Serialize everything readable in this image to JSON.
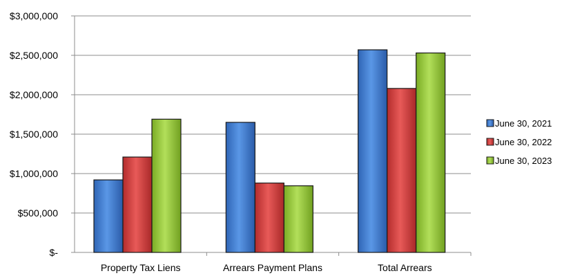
{
  "chart_data": {
    "type": "bar",
    "title": "",
    "xlabel": "",
    "ylabel": "",
    "categories": [
      "Property Tax Liens",
      "Arrears Payment Plans",
      "Total Arrears"
    ],
    "series": [
      {
        "name": "June 30, 2021",
        "color": "#3f7fd6",
        "values": [
          920000,
          1650000,
          2570000
        ]
      },
      {
        "name": "June 30, 2022",
        "color": "#d9403f",
        "values": [
          1210000,
          880000,
          2080000
        ]
      },
      {
        "name": "June 30, 2023",
        "color": "#9acb3c",
        "values": [
          1690000,
          845000,
          2530000
        ]
      }
    ],
    "ylim": [
      0,
      3000000
    ],
    "yticks": [
      0,
      500000,
      1000000,
      1500000,
      2000000,
      2500000,
      3000000
    ],
    "ytick_labels": [
      "$-",
      "$500,000",
      "$1,000,000",
      "$1,500,000",
      "$2,000,000",
      "$2,500,000",
      "$3,000,000"
    ],
    "grid": true,
    "legend_position": "right"
  }
}
